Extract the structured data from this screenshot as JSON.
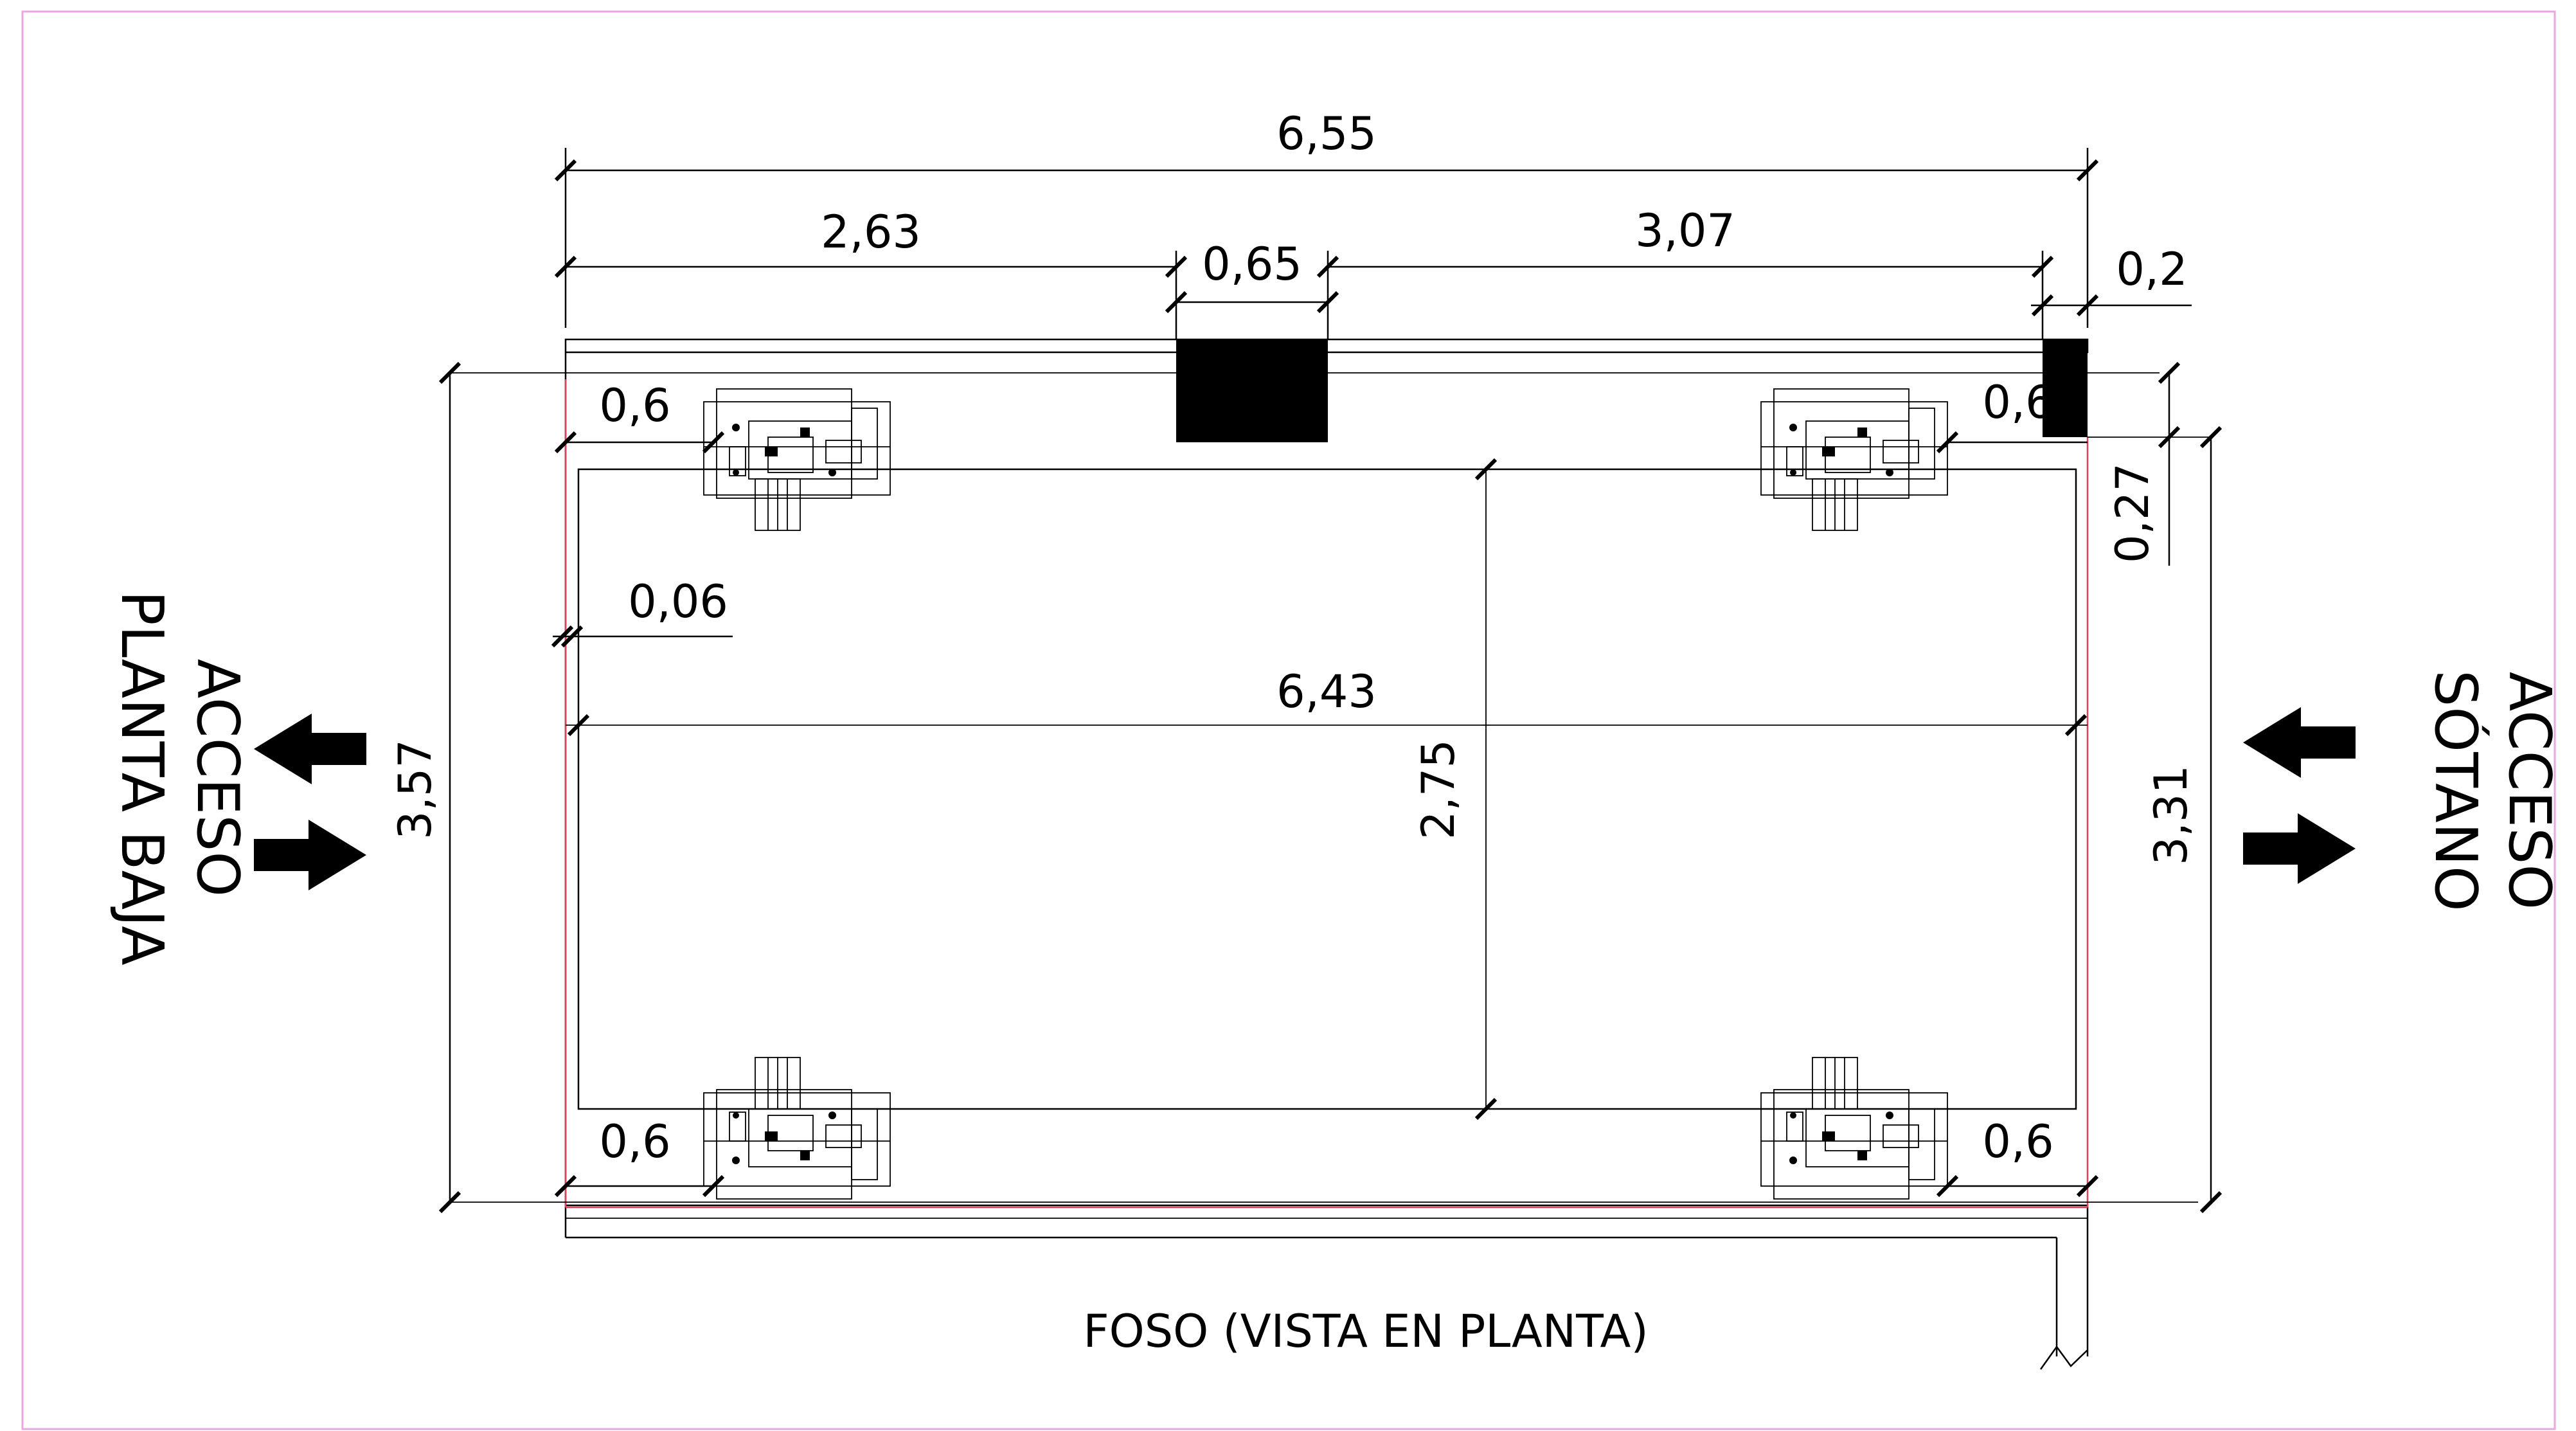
{
  "plan": {
    "caption": "FOSO (VISTA EN PLANTA)",
    "left_access": {
      "line1": "ACCESO",
      "line2": "PLANTA BAJA"
    },
    "right_access": {
      "line1": "ACCESO",
      "line2": "SÓTANO"
    }
  },
  "dimensions": {
    "total_width": "6,55",
    "left_segment": "2,63",
    "column_width": "0,65",
    "right_segment": "3,07",
    "wall_thickness": "0,2",
    "corner_top_left": "0,6",
    "corner_top_right": "0,6",
    "corner_bottom_left": "0,6",
    "corner_bottom_right": "0,6",
    "gap": "0,06",
    "inner_width": "6,43",
    "inner_depth": "2,75",
    "total_depth": "3,57",
    "right_depth": "3,31",
    "offset": "0,27"
  }
}
